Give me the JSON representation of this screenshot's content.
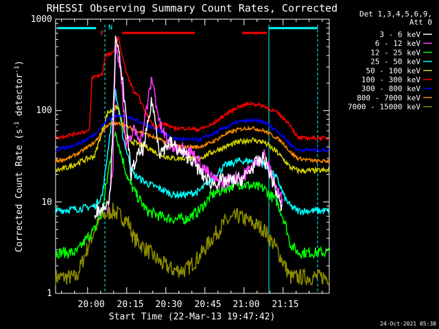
{
  "chart_data": {
    "type": "line",
    "title": "RHESSI Observing Summary Count Rates, Corrected",
    "xlabel": "Start Time (22-Mar-13 19:47:42)",
    "ylabel": "Corrected Count Rate (s",
    "ylabel_sup1": "-1",
    "ylabel_mid": " detector",
    "ylabel_sup2": "-1",
    "ylabel_end": ")",
    "yscale": "log",
    "ylim": [
      1,
      1000
    ],
    "xlim_minutes": [
      0,
      105
    ],
    "x_tick_labels": [
      "20:00",
      "20:15",
      "20:30",
      "20:45",
      "21:00",
      "21:15"
    ],
    "y_tick_labels": [
      "1",
      "10",
      "100",
      "1000"
    ],
    "legend_header": [
      "Det 1,3,4,5,6,9,",
      "Att 0"
    ],
    "flag_labels": [
      "F",
      "N"
    ],
    "footer_timestamp": "24-Oct-2021 05:38",
    "series": [
      {
        "name": "3 - 6 keV",
        "color": "#ffffff"
      },
      {
        "name": "6 - 12 keV",
        "color": "#ff3cff"
      },
      {
        "name": "12 - 25 keV",
        "color": "#00ff00"
      },
      {
        "name": "25 - 50 keV",
        "color": "#00ffff"
      },
      {
        "name": "50 - 100 keV",
        "color": "#d8d800"
      },
      {
        "name": "100 - 300 keV",
        "color": "#ff0000"
      },
      {
        "name": "300 - 800 keV",
        "color": "#0000ff"
      },
      {
        "name": "800 - 7000 keV",
        "color": "#ff8c00"
      },
      {
        "name": "7000 - 15000 keV",
        "color": "#8c8c00"
      }
    ],
    "series_points": {
      "100 - 300 keV": [
        [
          0,
          50
        ],
        [
          10,
          58
        ],
        [
          13,
          60
        ],
        [
          14,
          230
        ],
        [
          18,
          250
        ],
        [
          19,
          400
        ],
        [
          22,
          420
        ],
        [
          24,
          640
        ],
        [
          27,
          270
        ],
        [
          30,
          160
        ],
        [
          32,
          140
        ],
        [
          35,
          90
        ],
        [
          38,
          66
        ],
        [
          42,
          72
        ],
        [
          45,
          64
        ],
        [
          50,
          64
        ],
        [
          55,
          62
        ],
        [
          60,
          70
        ],
        [
          65,
          90
        ],
        [
          70,
          110
        ],
        [
          75,
          120
        ],
        [
          80,
          112
        ],
        [
          85,
          95
        ],
        [
          88,
          80
        ],
        [
          90,
          70
        ],
        [
          93,
          50
        ],
        [
          100,
          50
        ],
        [
          105,
          50
        ]
      ],
      "300 - 800 keV": [
        [
          0,
          37
        ],
        [
          5,
          40
        ],
        [
          10,
          45
        ],
        [
          15,
          55
        ],
        [
          20,
          80
        ],
        [
          22,
          85
        ],
        [
          25,
          90
        ],
        [
          30,
          80
        ],
        [
          35,
          70
        ],
        [
          40,
          60
        ],
        [
          45,
          50
        ],
        [
          50,
          48
        ],
        [
          55,
          48
        ],
        [
          60,
          55
        ],
        [
          65,
          65
        ],
        [
          70,
          75
        ],
        [
          75,
          78
        ],
        [
          80,
          75
        ],
        [
          85,
          60
        ],
        [
          88,
          50
        ],
        [
          90,
          43
        ],
        [
          93,
          37
        ],
        [
          100,
          37
        ],
        [
          105,
          37
        ]
      ],
      "800 - 7000 keV": [
        [
          0,
          28
        ],
        [
          5,
          30
        ],
        [
          10,
          36
        ],
        [
          15,
          45
        ],
        [
          20,
          70
        ],
        [
          25,
          72
        ],
        [
          30,
          62
        ],
        [
          35,
          55
        ],
        [
          40,
          48
        ],
        [
          45,
          42
        ],
        [
          50,
          40
        ],
        [
          55,
          40
        ],
        [
          60,
          45
        ],
        [
          65,
          55
        ],
        [
          70,
          62
        ],
        [
          75,
          65
        ],
        [
          80,
          60
        ],
        [
          85,
          50
        ],
        [
          88,
          42
        ],
        [
          90,
          35
        ],
        [
          93,
          30
        ],
        [
          100,
          28
        ],
        [
          105,
          28
        ]
      ],
      "50 - 100 keV": [
        [
          0,
          22
        ],
        [
          5,
          24
        ],
        [
          10,
          28
        ],
        [
          15,
          32
        ],
        [
          20,
          95
        ],
        [
          24,
          110
        ],
        [
          27,
          50
        ],
        [
          30,
          45
        ],
        [
          35,
          40
        ],
        [
          40,
          33
        ],
        [
          45,
          30
        ],
        [
          50,
          30
        ],
        [
          55,
          30
        ],
        [
          60,
          35
        ],
        [
          65,
          40
        ],
        [
          70,
          45
        ],
        [
          75,
          48
        ],
        [
          80,
          45
        ],
        [
          85,
          35
        ],
        [
          88,
          28
        ],
        [
          90,
          24
        ],
        [
          93,
          22
        ],
        [
          100,
          22
        ],
        [
          105,
          22
        ]
      ],
      "25 - 50 keV": [
        [
          0,
          8
        ],
        [
          10,
          8.5
        ],
        [
          15,
          9
        ],
        [
          18,
          12
        ],
        [
          21,
          60
        ],
        [
          23,
          160
        ],
        [
          26,
          50
        ],
        [
          28,
          30
        ],
        [
          30,
          20
        ],
        [
          35,
          16
        ],
        [
          40,
          14
        ],
        [
          45,
          12
        ],
        [
          50,
          12
        ],
        [
          55,
          13
        ],
        [
          60,
          18
        ],
        [
          65,
          25
        ],
        [
          70,
          28
        ],
        [
          75,
          28
        ],
        [
          80,
          26
        ],
        [
          85,
          18
        ],
        [
          88,
          11
        ],
        [
          90,
          9
        ],
        [
          93,
          8
        ],
        [
          100,
          8
        ],
        [
          105,
          8
        ]
      ],
      "12 - 25 keV": [
        [
          0,
          2.8
        ],
        [
          8,
          2.8
        ],
        [
          12,
          4
        ],
        [
          15,
          5
        ],
        [
          18,
          8
        ],
        [
          21,
          30
        ],
        [
          23,
          60
        ],
        [
          25,
          35
        ],
        [
          28,
          17
        ],
        [
          31,
          12
        ],
        [
          35,
          8
        ],
        [
          40,
          7
        ],
        [
          45,
          6.5
        ],
        [
          50,
          6.5
        ],
        [
          55,
          8
        ],
        [
          60,
          12
        ],
        [
          65,
          14
        ],
        [
          70,
          16
        ],
        [
          75,
          15
        ],
        [
          80,
          14
        ],
        [
          85,
          10
        ],
        [
          88,
          6
        ],
        [
          90,
          3.5
        ],
        [
          93,
          2.8
        ],
        [
          105,
          2.8
        ]
      ],
      "7000 - 15000 keV": [
        [
          0,
          1.5
        ],
        [
          8,
          1.5
        ],
        [
          12,
          3
        ],
        [
          15,
          5
        ],
        [
          18,
          7
        ],
        [
          22,
          8
        ],
        [
          25,
          7
        ],
        [
          28,
          6
        ],
        [
          30,
          4
        ],
        [
          35,
          3
        ],
        [
          40,
          2.2
        ],
        [
          45,
          1.8
        ],
        [
          50,
          1.8
        ],
        [
          55,
          2.5
        ],
        [
          60,
          4
        ],
        [
          65,
          6
        ],
        [
          70,
          7
        ],
        [
          75,
          6
        ],
        [
          80,
          5
        ],
        [
          85,
          3
        ],
        [
          88,
          2
        ],
        [
          90,
          1.5
        ],
        [
          105,
          1.5
        ]
      ],
      "3 - 6 keV": [
        [
          15,
          8
        ],
        [
          18,
          8.5
        ],
        [
          21,
          12
        ],
        [
          23,
          560
        ],
        [
          25,
          350
        ],
        [
          27,
          80
        ],
        [
          29,
          20
        ],
        [
          31,
          30
        ],
        [
          34,
          40
        ],
        [
          37,
          130
        ],
        [
          40,
          35
        ],
        [
          44,
          45
        ],
        [
          48,
          35
        ],
        [
          52,
          30
        ],
        [
          56,
          20
        ],
        [
          60,
          16
        ],
        [
          64,
          17
        ],
        [
          68,
          17
        ],
        [
          72,
          18
        ],
        [
          76,
          25
        ],
        [
          80,
          30
        ],
        [
          84,
          15
        ],
        [
          87,
          8
        ]
      ],
      "6 - 12 keV": [
        [
          20,
          9
        ],
        [
          22,
          25
        ],
        [
          23,
          500
        ],
        [
          25,
          300
        ],
        [
          27,
          40
        ],
        [
          30,
          60
        ],
        [
          33,
          50
        ],
        [
          37,
          230
        ],
        [
          40,
          70
        ],
        [
          44,
          40
        ],
        [
          48,
          40
        ],
        [
          52,
          35
        ],
        [
          56,
          25
        ],
        [
          60,
          18
        ],
        [
          64,
          16
        ],
        [
          68,
          18
        ],
        [
          72,
          19
        ],
        [
          76,
          26
        ],
        [
          80,
          33
        ],
        [
          84,
          16
        ],
        [
          87,
          10
        ]
      ]
    }
  }
}
